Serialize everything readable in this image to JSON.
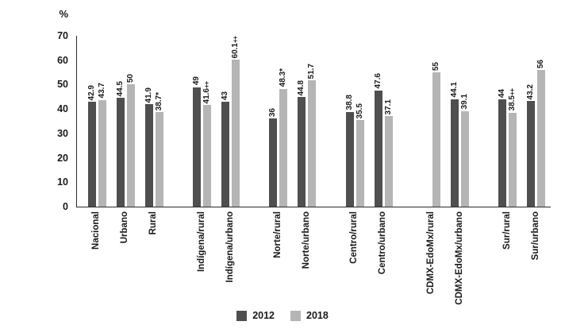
{
  "chart_data": {
    "type": "bar",
    "title": "",
    "xlabel": "",
    "ylabel": "%",
    "ylim": [
      0,
      70
    ],
    "yticks": [
      0,
      10,
      20,
      30,
      40,
      50,
      60,
      70
    ],
    "grid": false,
    "legend_position": "bottom",
    "categories": [
      "Nacional",
      "Urbano",
      "Rural",
      "Indígena/rural",
      "Indígena/urbano",
      "Norte/rural",
      "Norte/urbano",
      "Centro/rural",
      "Centro/urbano",
      "CDMX-EdoMx/rural",
      "CDMX-EdoMx/urbano",
      "Sur/rural",
      "Sur/urbano"
    ],
    "clusters": [
      [
        0,
        1,
        2
      ],
      [
        3,
        4
      ],
      [
        5,
        6
      ],
      [
        7,
        8
      ],
      [
        9,
        10
      ],
      [
        11,
        12
      ]
    ],
    "series": [
      {
        "name": "2012",
        "color": "#4f4f4f",
        "values": [
          42.9,
          44.5,
          41.9,
          49,
          43,
          36,
          44.8,
          38.8,
          47.6,
          null,
          44.1,
          44,
          43.2
        ],
        "labels": [
          "42.9",
          "44.5",
          "41.9",
          "49",
          "43",
          "36",
          "44.8",
          "38.8",
          "47.6",
          "",
          "44.1",
          "44",
          "43.2"
        ]
      },
      {
        "name": "2018",
        "color": "#b5b5b5",
        "values": [
          43.7,
          50,
          38.7,
          41.6,
          60.1,
          48.3,
          51.7,
          35.5,
          37.1,
          55,
          39.1,
          38.5,
          56
        ],
        "labels": [
          "43.7",
          "50",
          "38.7*",
          "41.6‡",
          "60.1‡",
          "48.3*",
          "51.7",
          "35.5",
          "37.1",
          "55",
          "39.1",
          "38.5‡",
          "56"
        ]
      }
    ]
  },
  "legend": {
    "entries": [
      "2012",
      "2018"
    ]
  }
}
